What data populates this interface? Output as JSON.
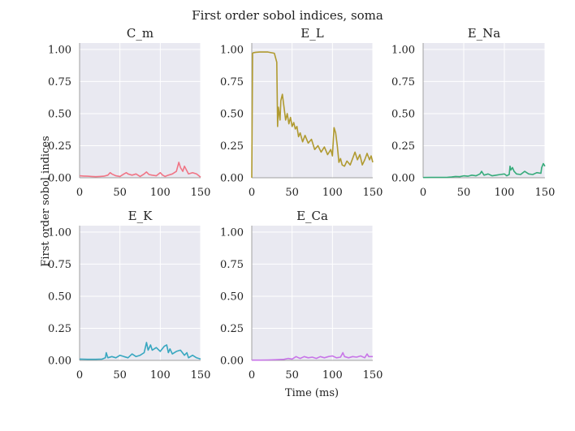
{
  "figure": {
    "suptitle": "First order sobol indices, soma",
    "xlabel": "Time (ms)",
    "ylabel": "First order sobol indices"
  },
  "colors": {
    "background": "#e9e9f1",
    "grid": "#ffffff",
    "axis": "#a0a0a0"
  },
  "chart_data": [
    {
      "type": "line",
      "title": "C_m",
      "color": "#f07585",
      "xlim": [
        0,
        150
      ],
      "ylim": [
        0,
        1.05
      ],
      "xticks": [
        "0",
        "50",
        "100",
        "150"
      ],
      "yticks": [
        "0.00",
        "0.25",
        "0.50",
        "0.75",
        "1.00"
      ],
      "x": [
        0,
        5,
        10,
        15,
        20,
        25,
        30,
        35,
        38,
        40,
        45,
        50,
        55,
        58,
        60,
        65,
        70,
        75,
        80,
        83,
        86,
        90,
        95,
        100,
        103,
        106,
        110,
        115,
        120,
        123,
        125,
        128,
        130,
        135,
        140,
        145,
        150
      ],
      "y": [
        0.015,
        0.013,
        0.012,
        0.01,
        0.008,
        0.01,
        0.012,
        0.02,
        0.04,
        0.03,
        0.015,
        0.01,
        0.03,
        0.04,
        0.03,
        0.02,
        0.03,
        0.01,
        0.03,
        0.045,
        0.025,
        0.02,
        0.015,
        0.04,
        0.02,
        0.01,
        0.02,
        0.03,
        0.05,
        0.12,
        0.08,
        0.05,
        0.09,
        0.03,
        0.04,
        0.03,
        0.005
      ]
    },
    {
      "type": "line",
      "title": "E_L",
      "color": "#b09a30",
      "xlim": [
        0,
        150
      ],
      "ylim": [
        0,
        1.05
      ],
      "xticks": [
        "0",
        "50",
        "100",
        "150"
      ],
      "yticks": [
        "0.00",
        "0.25",
        "0.50",
        "0.75",
        "1.00"
      ],
      "x": [
        0,
        1,
        2,
        5,
        10,
        20,
        28,
        31,
        32,
        33,
        34,
        35,
        36,
        38,
        40,
        42,
        44,
        46,
        48,
        50,
        52,
        54,
        56,
        58,
        60,
        63,
        66,
        70,
        74,
        78,
        82,
        86,
        90,
        94,
        98,
        100,
        102,
        104,
        106,
        108,
        110,
        112,
        115,
        118,
        122,
        125,
        128,
        131,
        134,
        137,
        140,
        143,
        146,
        148,
        150
      ],
      "y": [
        0.0,
        0.97,
        0.975,
        0.978,
        0.98,
        0.98,
        0.97,
        0.9,
        0.4,
        0.55,
        0.5,
        0.45,
        0.6,
        0.65,
        0.55,
        0.45,
        0.5,
        0.42,
        0.47,
        0.4,
        0.43,
        0.38,
        0.4,
        0.32,
        0.35,
        0.28,
        0.33,
        0.27,
        0.3,
        0.22,
        0.25,
        0.2,
        0.24,
        0.18,
        0.22,
        0.17,
        0.39,
        0.35,
        0.25,
        0.12,
        0.15,
        0.1,
        0.09,
        0.13,
        0.1,
        0.15,
        0.2,
        0.14,
        0.18,
        0.1,
        0.14,
        0.19,
        0.14,
        0.17,
        0.12
      ]
    },
    {
      "type": "line",
      "title": "E_Na",
      "color": "#36ab7a",
      "xlim": [
        0,
        150
      ],
      "ylim": [
        0,
        1.05
      ],
      "xticks": [
        "0",
        "50",
        "100",
        "150"
      ],
      "yticks": [
        "0.00",
        "0.25",
        "0.50",
        "0.75",
        "1.00"
      ],
      "x": [
        0,
        10,
        20,
        30,
        35,
        40,
        45,
        50,
        55,
        60,
        65,
        70,
        72,
        75,
        80,
        85,
        90,
        95,
        100,
        103,
        106,
        107,
        108,
        110,
        112,
        115,
        120,
        125,
        130,
        135,
        140,
        145,
        146,
        148,
        150
      ],
      "y": [
        0.002,
        0.003,
        0.003,
        0.004,
        0.006,
        0.01,
        0.008,
        0.015,
        0.012,
        0.02,
        0.015,
        0.03,
        0.05,
        0.02,
        0.03,
        0.015,
        0.02,
        0.025,
        0.03,
        0.015,
        0.025,
        0.09,
        0.06,
        0.08,
        0.05,
        0.03,
        0.025,
        0.05,
        0.03,
        0.025,
        0.04,
        0.035,
        0.08,
        0.11,
        0.09
      ]
    },
    {
      "type": "line",
      "title": "E_K",
      "color": "#38a7c0",
      "xlim": [
        0,
        150
      ],
      "ylim": [
        0,
        1.05
      ],
      "xticks": [
        "0",
        "50",
        "100",
        "150"
      ],
      "yticks": [
        "0.00",
        "0.25",
        "0.50",
        "0.75",
        "1.00"
      ],
      "x": [
        0,
        10,
        20,
        28,
        32,
        33,
        35,
        40,
        45,
        50,
        55,
        60,
        65,
        70,
        75,
        80,
        83,
        85,
        88,
        90,
        95,
        100,
        105,
        108,
        110,
        112,
        115,
        120,
        125,
        130,
        133,
        135,
        140,
        145,
        150
      ],
      "y": [
        0.01,
        0.008,
        0.008,
        0.01,
        0.02,
        0.06,
        0.02,
        0.03,
        0.02,
        0.04,
        0.03,
        0.02,
        0.05,
        0.03,
        0.04,
        0.06,
        0.14,
        0.08,
        0.12,
        0.08,
        0.1,
        0.07,
        0.11,
        0.12,
        0.06,
        0.09,
        0.05,
        0.07,
        0.08,
        0.04,
        0.06,
        0.02,
        0.04,
        0.02,
        0.01
      ]
    },
    {
      "type": "line",
      "title": "E_Ca",
      "color": "#c875e8",
      "xlim": [
        0,
        150
      ],
      "ylim": [
        0,
        1.05
      ],
      "xticks": [
        "0",
        "50",
        "100",
        "150"
      ],
      "yticks": [
        "0.00",
        "0.25",
        "0.50",
        "0.75",
        "1.00"
      ],
      "x": [
        0,
        10,
        20,
        30,
        40,
        45,
        50,
        55,
        58,
        60,
        65,
        70,
        75,
        80,
        85,
        90,
        95,
        100,
        105,
        110,
        113,
        115,
        120,
        125,
        130,
        135,
        140,
        143,
        145,
        150
      ],
      "y": [
        0.002,
        0.002,
        0.003,
        0.005,
        0.008,
        0.015,
        0.01,
        0.03,
        0.02,
        0.015,
        0.03,
        0.02,
        0.025,
        0.015,
        0.03,
        0.02,
        0.03,
        0.035,
        0.02,
        0.025,
        0.06,
        0.03,
        0.02,
        0.03,
        0.025,
        0.035,
        0.02,
        0.05,
        0.03,
        0.03
      ]
    }
  ]
}
